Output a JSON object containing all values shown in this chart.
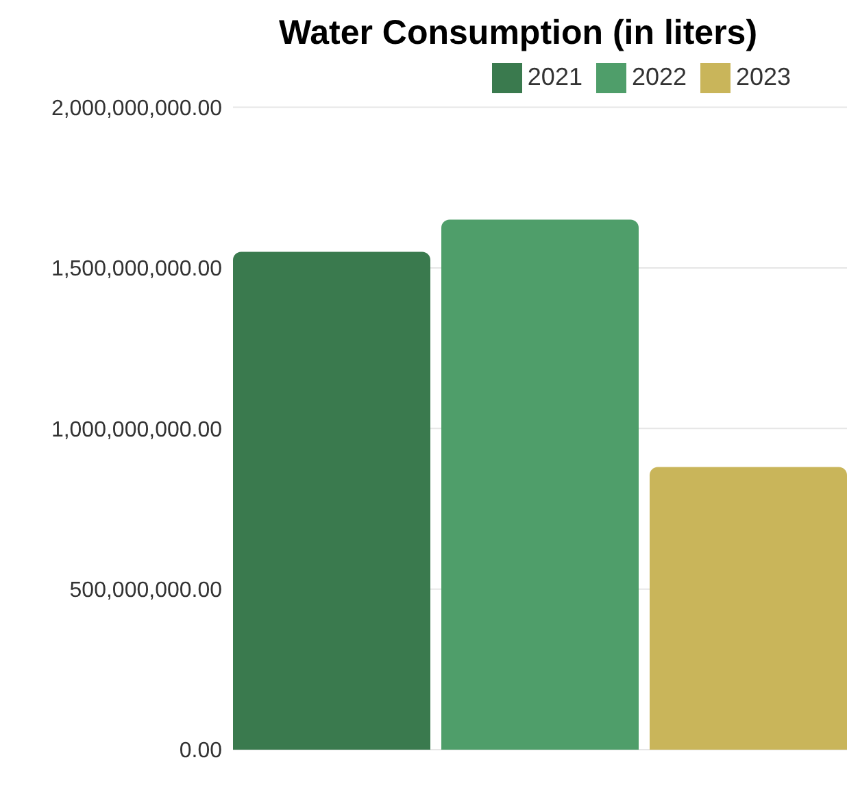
{
  "chart_data": {
    "type": "bar",
    "title": "Water Consumption (in liters)",
    "categories": [
      null
    ],
    "series": [
      {
        "name": "2021",
        "color": "#3a7a4e",
        "values": [
          1550000000
        ]
      },
      {
        "name": "2022",
        "color": "#4f9e6a",
        "values": [
          1650000000
        ]
      },
      {
        "name": "2023",
        "color": "#c9b55a",
        "values": [
          880000000
        ]
      }
    ],
    "ylim": [
      0,
      2000000000
    ],
    "yticks": [
      {
        "value": 0,
        "label": "0.00"
      },
      {
        "value": 500000000,
        "label": "500,000,000.00"
      },
      {
        "value": 1000000000,
        "label": "1,000,000,000.00"
      },
      {
        "value": 1500000000,
        "label": "1,500,000,000.00"
      },
      {
        "value": 2000000000,
        "label": "2,000,000,000.00"
      }
    ],
    "grid": "y",
    "legend": "top",
    "tick_labels": "y"
  }
}
